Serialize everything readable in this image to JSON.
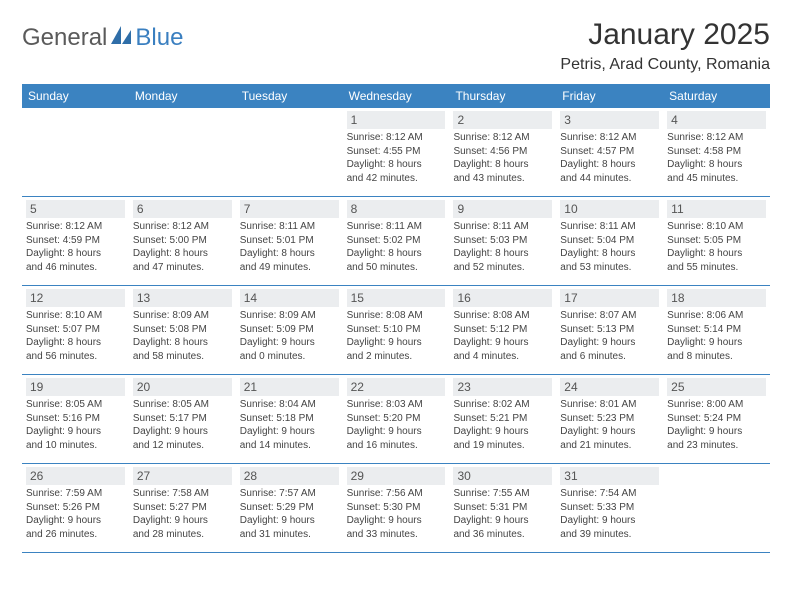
{
  "logo": {
    "general": "General",
    "blue": "Blue"
  },
  "title": "January 2025",
  "location": "Petris, Arad County, Romania",
  "weekdays": [
    "Sunday",
    "Monday",
    "Tuesday",
    "Wednesday",
    "Thursday",
    "Friday",
    "Saturday"
  ],
  "colors": {
    "header_bg": "#3b83c1",
    "header_text": "#ffffff",
    "daynum_bg": "#ebedef",
    "logo_gray": "#5a5a5a",
    "logo_blue": "#3a7fc0"
  },
  "weeks": [
    [
      {
        "empty": true
      },
      {
        "empty": true
      },
      {
        "empty": true
      },
      {
        "day": "1",
        "sunrise": "Sunrise: 8:12 AM",
        "sunset": "Sunset: 4:55 PM",
        "dl1": "Daylight: 8 hours",
        "dl2": "and 42 minutes."
      },
      {
        "day": "2",
        "sunrise": "Sunrise: 8:12 AM",
        "sunset": "Sunset: 4:56 PM",
        "dl1": "Daylight: 8 hours",
        "dl2": "and 43 minutes."
      },
      {
        "day": "3",
        "sunrise": "Sunrise: 8:12 AM",
        "sunset": "Sunset: 4:57 PM",
        "dl1": "Daylight: 8 hours",
        "dl2": "and 44 minutes."
      },
      {
        "day": "4",
        "sunrise": "Sunrise: 8:12 AM",
        "sunset": "Sunset: 4:58 PM",
        "dl1": "Daylight: 8 hours",
        "dl2": "and 45 minutes."
      }
    ],
    [
      {
        "day": "5",
        "sunrise": "Sunrise: 8:12 AM",
        "sunset": "Sunset: 4:59 PM",
        "dl1": "Daylight: 8 hours",
        "dl2": "and 46 minutes."
      },
      {
        "day": "6",
        "sunrise": "Sunrise: 8:12 AM",
        "sunset": "Sunset: 5:00 PM",
        "dl1": "Daylight: 8 hours",
        "dl2": "and 47 minutes."
      },
      {
        "day": "7",
        "sunrise": "Sunrise: 8:11 AM",
        "sunset": "Sunset: 5:01 PM",
        "dl1": "Daylight: 8 hours",
        "dl2": "and 49 minutes."
      },
      {
        "day": "8",
        "sunrise": "Sunrise: 8:11 AM",
        "sunset": "Sunset: 5:02 PM",
        "dl1": "Daylight: 8 hours",
        "dl2": "and 50 minutes."
      },
      {
        "day": "9",
        "sunrise": "Sunrise: 8:11 AM",
        "sunset": "Sunset: 5:03 PM",
        "dl1": "Daylight: 8 hours",
        "dl2": "and 52 minutes."
      },
      {
        "day": "10",
        "sunrise": "Sunrise: 8:11 AM",
        "sunset": "Sunset: 5:04 PM",
        "dl1": "Daylight: 8 hours",
        "dl2": "and 53 minutes."
      },
      {
        "day": "11",
        "sunrise": "Sunrise: 8:10 AM",
        "sunset": "Sunset: 5:05 PM",
        "dl1": "Daylight: 8 hours",
        "dl2": "and 55 minutes."
      }
    ],
    [
      {
        "day": "12",
        "sunrise": "Sunrise: 8:10 AM",
        "sunset": "Sunset: 5:07 PM",
        "dl1": "Daylight: 8 hours",
        "dl2": "and 56 minutes."
      },
      {
        "day": "13",
        "sunrise": "Sunrise: 8:09 AM",
        "sunset": "Sunset: 5:08 PM",
        "dl1": "Daylight: 8 hours",
        "dl2": "and 58 minutes."
      },
      {
        "day": "14",
        "sunrise": "Sunrise: 8:09 AM",
        "sunset": "Sunset: 5:09 PM",
        "dl1": "Daylight: 9 hours",
        "dl2": "and 0 minutes."
      },
      {
        "day": "15",
        "sunrise": "Sunrise: 8:08 AM",
        "sunset": "Sunset: 5:10 PM",
        "dl1": "Daylight: 9 hours",
        "dl2": "and 2 minutes."
      },
      {
        "day": "16",
        "sunrise": "Sunrise: 8:08 AM",
        "sunset": "Sunset: 5:12 PM",
        "dl1": "Daylight: 9 hours",
        "dl2": "and 4 minutes."
      },
      {
        "day": "17",
        "sunrise": "Sunrise: 8:07 AM",
        "sunset": "Sunset: 5:13 PM",
        "dl1": "Daylight: 9 hours",
        "dl2": "and 6 minutes."
      },
      {
        "day": "18",
        "sunrise": "Sunrise: 8:06 AM",
        "sunset": "Sunset: 5:14 PM",
        "dl1": "Daylight: 9 hours",
        "dl2": "and 8 minutes."
      }
    ],
    [
      {
        "day": "19",
        "sunrise": "Sunrise: 8:05 AM",
        "sunset": "Sunset: 5:16 PM",
        "dl1": "Daylight: 9 hours",
        "dl2": "and 10 minutes."
      },
      {
        "day": "20",
        "sunrise": "Sunrise: 8:05 AM",
        "sunset": "Sunset: 5:17 PM",
        "dl1": "Daylight: 9 hours",
        "dl2": "and 12 minutes."
      },
      {
        "day": "21",
        "sunrise": "Sunrise: 8:04 AM",
        "sunset": "Sunset: 5:18 PM",
        "dl1": "Daylight: 9 hours",
        "dl2": "and 14 minutes."
      },
      {
        "day": "22",
        "sunrise": "Sunrise: 8:03 AM",
        "sunset": "Sunset: 5:20 PM",
        "dl1": "Daylight: 9 hours",
        "dl2": "and 16 minutes."
      },
      {
        "day": "23",
        "sunrise": "Sunrise: 8:02 AM",
        "sunset": "Sunset: 5:21 PM",
        "dl1": "Daylight: 9 hours",
        "dl2": "and 19 minutes."
      },
      {
        "day": "24",
        "sunrise": "Sunrise: 8:01 AM",
        "sunset": "Sunset: 5:23 PM",
        "dl1": "Daylight: 9 hours",
        "dl2": "and 21 minutes."
      },
      {
        "day": "25",
        "sunrise": "Sunrise: 8:00 AM",
        "sunset": "Sunset: 5:24 PM",
        "dl1": "Daylight: 9 hours",
        "dl2": "and 23 minutes."
      }
    ],
    [
      {
        "day": "26",
        "sunrise": "Sunrise: 7:59 AM",
        "sunset": "Sunset: 5:26 PM",
        "dl1": "Daylight: 9 hours",
        "dl2": "and 26 minutes."
      },
      {
        "day": "27",
        "sunrise": "Sunrise: 7:58 AM",
        "sunset": "Sunset: 5:27 PM",
        "dl1": "Daylight: 9 hours",
        "dl2": "and 28 minutes."
      },
      {
        "day": "28",
        "sunrise": "Sunrise: 7:57 AM",
        "sunset": "Sunset: 5:29 PM",
        "dl1": "Daylight: 9 hours",
        "dl2": "and 31 minutes."
      },
      {
        "day": "29",
        "sunrise": "Sunrise: 7:56 AM",
        "sunset": "Sunset: 5:30 PM",
        "dl1": "Daylight: 9 hours",
        "dl2": "and 33 minutes."
      },
      {
        "day": "30",
        "sunrise": "Sunrise: 7:55 AM",
        "sunset": "Sunset: 5:31 PM",
        "dl1": "Daylight: 9 hours",
        "dl2": "and 36 minutes."
      },
      {
        "day": "31",
        "sunrise": "Sunrise: 7:54 AM",
        "sunset": "Sunset: 5:33 PM",
        "dl1": "Daylight: 9 hours",
        "dl2": "and 39 minutes."
      },
      {
        "empty": true
      }
    ]
  ]
}
